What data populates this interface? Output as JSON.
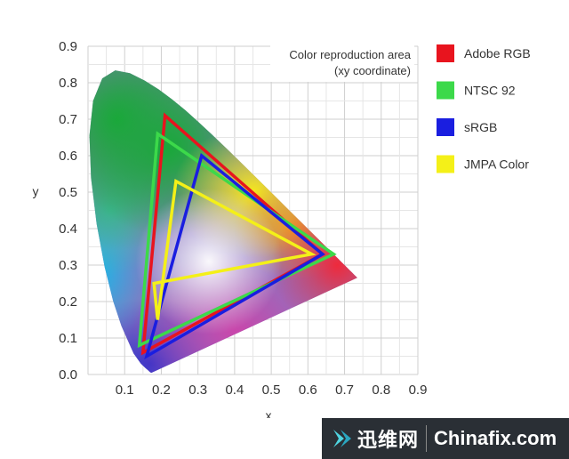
{
  "chart_data": {
    "type": "scatter",
    "xlabel": "x",
    "ylabel": "y",
    "xlim": [
      0,
      0.9
    ],
    "ylim": [
      0,
      0.9
    ],
    "x_ticks": [
      "0.1",
      "0.2",
      "0.3",
      "0.4",
      "0.5",
      "0.6",
      "0.7",
      "0.8",
      "0.9"
    ],
    "y_ticks": [
      "0.0",
      "0.1",
      "0.2",
      "0.3",
      "0.4",
      "0.5",
      "0.6",
      "0.7",
      "0.8",
      "0.9"
    ],
    "grid": true,
    "annotation": [
      "Color reproduction area",
      "(xy coordinate)"
    ],
    "legend_position": "right",
    "series": [
      {
        "name": "Adobe RGB",
        "color": "#e8141e",
        "points": [
          [
            0.64,
            0.33
          ],
          [
            0.21,
            0.71
          ],
          [
            0.15,
            0.06
          ]
        ]
      },
      {
        "name": "NTSC 92",
        "color": "#3cd94a",
        "points": [
          [
            0.67,
            0.33
          ],
          [
            0.19,
            0.66
          ],
          [
            0.14,
            0.08
          ]
        ]
      },
      {
        "name": "sRGB",
        "color": "#1a1ee0",
        "points": [
          [
            0.64,
            0.33
          ],
          [
            0.31,
            0.6
          ],
          [
            0.16,
            0.05
          ]
        ]
      },
      {
        "name": "JMPA Color",
        "color": "#f4f018",
        "points": [
          [
            0.61,
            0.33
          ],
          [
            0.24,
            0.53
          ],
          [
            0.19,
            0.15
          ],
          [
            0.18,
            0.25
          ]
        ]
      }
    ],
    "locus": [
      [
        0.1741,
        0.005
      ],
      [
        0.1738,
        0.0049
      ],
      [
        0.1733,
        0.0048
      ],
      [
        0.1726,
        0.0048
      ],
      [
        0.1714,
        0.0051
      ],
      [
        0.1689,
        0.0069
      ],
      [
        0.1644,
        0.0109
      ],
      [
        0.1566,
        0.0177
      ],
      [
        0.144,
        0.0297
      ],
      [
        0.1241,
        0.0578
      ],
      [
        0.0913,
        0.1327
      ],
      [
        0.0687,
        0.2007
      ],
      [
        0.0454,
        0.295
      ],
      [
        0.0235,
        0.4127
      ],
      [
        0.0082,
        0.5384
      ],
      [
        0.0039,
        0.6548
      ],
      [
        0.0139,
        0.7502
      ],
      [
        0.0389,
        0.812
      ],
      [
        0.0743,
        0.8338
      ],
      [
        0.1142,
        0.8262
      ],
      [
        0.1547,
        0.8059
      ],
      [
        0.1929,
        0.7816
      ],
      [
        0.2296,
        0.7543
      ],
      [
        0.2658,
        0.7243
      ],
      [
        0.3016,
        0.6923
      ],
      [
        0.3373,
        0.6589
      ],
      [
        0.3731,
        0.6245
      ],
      [
        0.4087,
        0.5896
      ],
      [
        0.4441,
        0.5547
      ],
      [
        0.4788,
        0.5202
      ],
      [
        0.5125,
        0.4866
      ],
      [
        0.5448,
        0.4544
      ],
      [
        0.5752,
        0.4242
      ],
      [
        0.6029,
        0.3965
      ],
      [
        0.627,
        0.3725
      ],
      [
        0.6482,
        0.3514
      ],
      [
        0.6658,
        0.334
      ],
      [
        0.6801,
        0.3197
      ],
      [
        0.6915,
        0.3083
      ],
      [
        0.7006,
        0.2993
      ],
      [
        0.7079,
        0.292
      ],
      [
        0.714,
        0.2859
      ],
      [
        0.719,
        0.2809
      ],
      [
        0.723,
        0.277
      ],
      [
        0.726,
        0.274
      ],
      [
        0.7283,
        0.2717
      ],
      [
        0.73,
        0.27
      ],
      [
        0.7347,
        0.2653
      ]
    ]
  },
  "watermark": {
    "cn": "迅维网",
    "en": "Chinafix.com"
  }
}
